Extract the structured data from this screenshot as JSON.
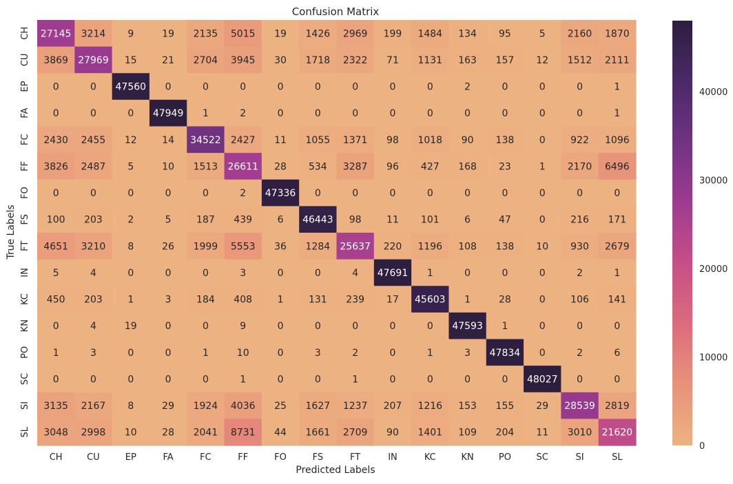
{
  "chart_data": {
    "type": "heatmap",
    "title": "Confusion Matrix",
    "xlabel": "Predicted Labels",
    "ylabel": "True Labels",
    "x_categories": [
      "CH",
      "CU",
      "EP",
      "FA",
      "FC",
      "FF",
      "FO",
      "FS",
      "FT",
      "IN",
      "KC",
      "KN",
      "PO",
      "SC",
      "SI",
      "SL"
    ],
    "y_categories": [
      "CH",
      "CU",
      "EP",
      "FA",
      "FC",
      "FF",
      "FO",
      "FS",
      "FT",
      "IN",
      "KC",
      "KN",
      "PO",
      "SC",
      "SI",
      "SL"
    ],
    "values": [
      [
        27145,
        3214,
        9,
        19,
        2135,
        5015,
        19,
        1426,
        2969,
        199,
        1484,
        134,
        95,
        5,
        2160,
        1870
      ],
      [
        3869,
        27969,
        15,
        21,
        2704,
        3945,
        30,
        1718,
        2322,
        71,
        1131,
        163,
        157,
        12,
        1512,
        2111
      ],
      [
        0,
        0,
        47560,
        0,
        0,
        0,
        0,
        0,
        0,
        0,
        0,
        2,
        0,
        0,
        0,
        1
      ],
      [
        0,
        0,
        0,
        47949,
        1,
        2,
        0,
        0,
        0,
        0,
        0,
        0,
        0,
        0,
        0,
        1
      ],
      [
        2430,
        2455,
        12,
        14,
        34522,
        2427,
        11,
        1055,
        1371,
        98,
        1018,
        90,
        138,
        0,
        922,
        1096
      ],
      [
        3826,
        2487,
        5,
        10,
        1513,
        26611,
        28,
        534,
        3287,
        96,
        427,
        168,
        23,
        1,
        2170,
        6496
      ],
      [
        0,
        0,
        0,
        0,
        0,
        2,
        47336,
        0,
        0,
        0,
        0,
        0,
        0,
        0,
        0,
        0
      ],
      [
        100,
        203,
        2,
        5,
        187,
        439,
        6,
        46443,
        98,
        11,
        101,
        6,
        47,
        0,
        216,
        171
      ],
      [
        4651,
        3210,
        8,
        26,
        1999,
        5553,
        36,
        1284,
        25637,
        220,
        1196,
        108,
        138,
        10,
        930,
        2679
      ],
      [
        5,
        4,
        0,
        0,
        0,
        3,
        0,
        0,
        4,
        47691,
        1,
        0,
        0,
        0,
        2,
        1
      ],
      [
        450,
        203,
        1,
        3,
        184,
        408,
        1,
        131,
        239,
        17,
        45603,
        1,
        28,
        0,
        106,
        141
      ],
      [
        0,
        4,
        19,
        0,
        0,
        9,
        0,
        0,
        0,
        0,
        0,
        47593,
        1,
        0,
        0,
        0
      ],
      [
        1,
        3,
        0,
        0,
        1,
        10,
        0,
        3,
        2,
        0,
        1,
        3,
        47834,
        0,
        2,
        6
      ],
      [
        0,
        0,
        0,
        0,
        0,
        1,
        0,
        0,
        1,
        0,
        0,
        0,
        0,
        48027,
        0,
        0
      ],
      [
        3135,
        2167,
        8,
        29,
        1924,
        4036,
        25,
        1627,
        1237,
        207,
        1216,
        153,
        155,
        29,
        28539,
        2819
      ],
      [
        3048,
        2998,
        10,
        28,
        2041,
        8731,
        44,
        1661,
        2709,
        90,
        1401,
        109,
        204,
        11,
        3010,
        21620
      ]
    ],
    "colorbar": {
      "min": 0,
      "max": 48027,
      "ticks": [
        0,
        10000,
        20000,
        30000,
        40000
      ],
      "colors": [
        "#edb281",
        "#e8927a",
        "#dd6b7d",
        "#c64f87",
        "#9e3b90",
        "#703381",
        "#4a2a68",
        "#2d1e3e"
      ]
    }
  }
}
